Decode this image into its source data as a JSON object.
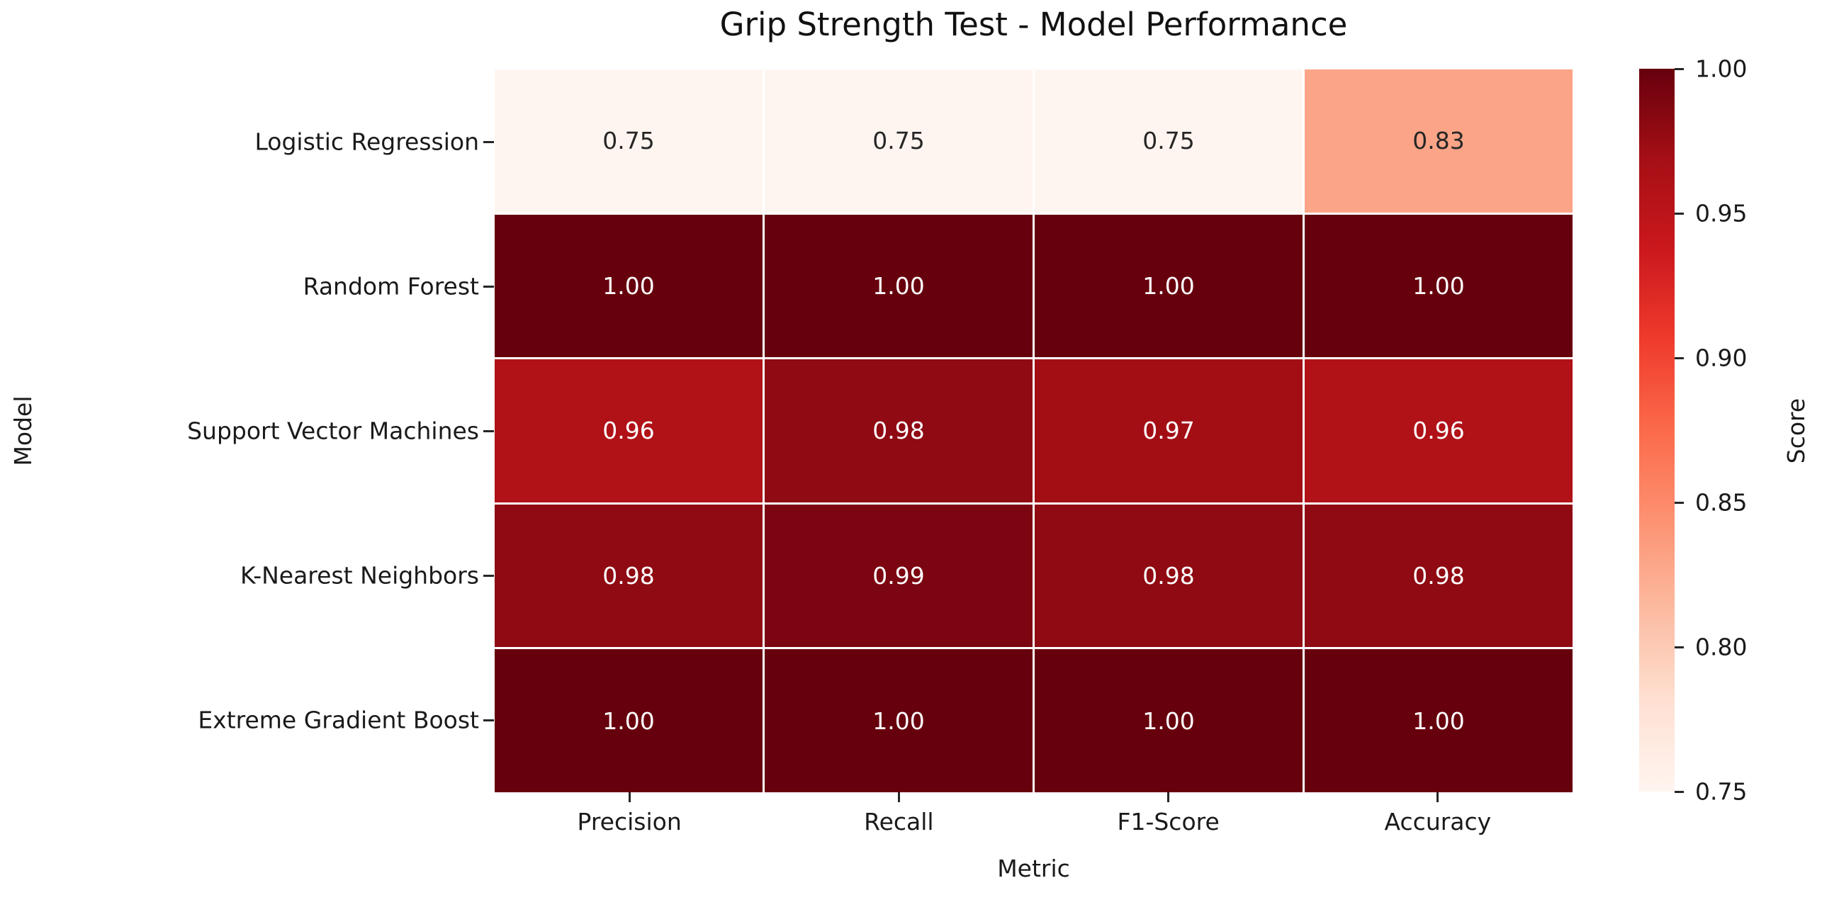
{
  "chart_data": {
    "type": "heatmap",
    "title": "Grip Strength Test - Model Performance",
    "xlabel": "Metric",
    "ylabel": "Model",
    "columns": [
      "Precision",
      "Recall",
      "F1-Score",
      "Accuracy"
    ],
    "rows": [
      "Logistic Regression",
      "Random Forest",
      "Support Vector Machines",
      "K-Nearest Neighbors",
      "Extreme Gradient Boost"
    ],
    "values": [
      [
        0.75,
        0.75,
        0.75,
        0.83
      ],
      [
        1.0,
        1.0,
        1.0,
        1.0
      ],
      [
        0.96,
        0.98,
        0.97,
        0.96
      ],
      [
        0.98,
        0.99,
        0.98,
        0.98
      ],
      [
        1.0,
        1.0,
        1.0,
        1.0
      ]
    ],
    "cell_colors": [
      [
        "#fff5f0",
        "#fff5f0",
        "#fff5f0",
        "#fca487"
      ],
      [
        "#67000d",
        "#67000d",
        "#67000d",
        "#67000d"
      ],
      [
        "#b01217",
        "#8f0a12",
        "#a30e15",
        "#b01217"
      ],
      [
        "#8f0a12",
        "#7b0510",
        "#8f0a12",
        "#8f0a12"
      ],
      [
        "#67000d",
        "#67000d",
        "#67000d",
        "#67000d"
      ]
    ],
    "cell_text_colors": [
      [
        "#262626",
        "#262626",
        "#262626",
        "#262626"
      ],
      [
        "#ffffff",
        "#ffffff",
        "#ffffff",
        "#ffffff"
      ],
      [
        "#ffffff",
        "#ffffff",
        "#ffffff",
        "#ffffff"
      ],
      [
        "#ffffff",
        "#ffffff",
        "#ffffff",
        "#ffffff"
      ],
      [
        "#ffffff",
        "#ffffff",
        "#ffffff",
        "#ffffff"
      ]
    ],
    "colormap": "Reds",
    "vmin": 0.75,
    "vmax": 1.0,
    "grid_line_color": "#ffffff",
    "colorbar": {
      "label": "Score",
      "ticks": [
        "1.00",
        "0.95",
        "0.90",
        "0.85",
        "0.80",
        "0.75"
      ],
      "gradient_stops": [
        {
          "pos": 0.0,
          "color": "#fff5f0"
        },
        {
          "pos": 0.125,
          "color": "#fee0d2"
        },
        {
          "pos": 0.25,
          "color": "#fcbba1"
        },
        {
          "pos": 0.375,
          "color": "#fc9272"
        },
        {
          "pos": 0.5,
          "color": "#fb6a4a"
        },
        {
          "pos": 0.625,
          "color": "#ef3b2c"
        },
        {
          "pos": 0.75,
          "color": "#cb181d"
        },
        {
          "pos": 0.875,
          "color": "#a50f15"
        },
        {
          "pos": 1.0,
          "color": "#67000d"
        }
      ]
    }
  }
}
